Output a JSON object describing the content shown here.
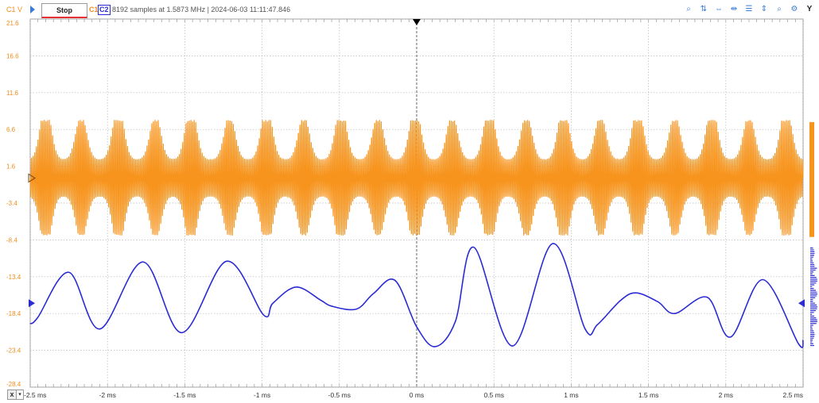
{
  "toolbar": {
    "channel_unit": "C1 V",
    "stop_label": "Stop",
    "c1_label": "C1",
    "c2_label": "C2",
    "acquisition_info": "8192 samples at 1.5873 MHz  |  2024-06-03 11:11:47.846",
    "tools": [
      "zoom-in-icon",
      "auto-scale-icon",
      "fit-horizontal-icon",
      "fit-cursors-icon",
      "stack-icon",
      "split-icon",
      "zoom-out-icon",
      "settings-icon"
    ],
    "tool_glyphs": [
      "⌕",
      "⇅",
      "⇔",
      "⇹",
      "☰",
      "⇕",
      "⌕",
      "⚙"
    ],
    "y_button": "Y"
  },
  "colors": {
    "c1": "#f7941d",
    "c2": "#2b2bd4",
    "grid": "#b8b8b8",
    "c1_axis_text": "#f28c1c"
  },
  "chart_data": {
    "type": "line",
    "title": "",
    "xlabel": "",
    "ylabel": "C1 V",
    "x_unit": "ms",
    "xlim": [
      -2.5,
      2.5
    ],
    "ylim": [
      -28.4,
      21.6
    ],
    "y_ticks": [
      21.6,
      16.6,
      11.6,
      6.6,
      1.6,
      -3.4,
      -8.4,
      -13.4,
      -18.4,
      -23.4,
      -28.4
    ],
    "x_ticks": [
      -2.5,
      -2,
      -1.5,
      -1,
      -0.5,
      0,
      0.5,
      1,
      1.5,
      2,
      2.5
    ],
    "x_tick_labels": [
      "-2.5 ms",
      "-2 ms",
      "-1.5 ms",
      "-1 ms",
      "-0.5 ms",
      "0 ms",
      "0.5 ms",
      "1 ms",
      "1.5 ms",
      "2 ms",
      "2.5 ms"
    ],
    "y_tick_labels": [
      "21.6",
      "16.6",
      "11.6",
      "6.6",
      "1.6",
      "-3.4",
      "-8.4",
      "-13.4",
      "-18.4",
      "-23.4",
      "-28.4"
    ],
    "grid": true,
    "series": [
      {
        "name": "C1",
        "description_type": "burst-modulated carrier",
        "center": 0.0,
        "peak_max": 7.9,
        "peak_min": -7.8,
        "envelope_peaks_ms": [
          -2.4,
          -2.17,
          -1.93,
          -1.69,
          -1.46,
          -1.21,
          -0.97,
          -0.73,
          -0.49,
          -0.25,
          -0.01,
          0.23,
          0.47,
          0.71,
          0.95,
          1.19,
          1.43,
          1.67,
          1.91,
          2.15,
          2.39
        ]
      },
      {
        "name": "C2",
        "points": [
          [
            -2.5,
            -19.8
          ],
          [
            -2.45,
            -18.9
          ],
          [
            -2.25,
            -12.8
          ],
          [
            -2.05,
            -20.5
          ],
          [
            -1.77,
            -11.4
          ],
          [
            -1.52,
            -21.0
          ],
          [
            -1.23,
            -11.3
          ],
          [
            -0.99,
            -18.6
          ],
          [
            -0.93,
            -17.0
          ],
          [
            -0.78,
            -14.8
          ],
          [
            -0.62,
            -16.6
          ],
          [
            -0.55,
            -17.4
          ],
          [
            -0.39,
            -17.8
          ],
          [
            -0.28,
            -15.7
          ],
          [
            -0.14,
            -13.9
          ],
          [
            0.0,
            -20.2
          ],
          [
            0.12,
            -22.9
          ],
          [
            0.25,
            -19.5
          ],
          [
            0.37,
            -9.4
          ],
          [
            0.62,
            -22.8
          ],
          [
            0.88,
            -8.9
          ],
          [
            1.09,
            -20.5
          ],
          [
            1.17,
            -19.9
          ],
          [
            1.32,
            -16.6
          ],
          [
            1.42,
            -15.6
          ],
          [
            1.56,
            -16.8
          ],
          [
            1.67,
            -18.4
          ],
          [
            1.88,
            -16.2
          ],
          [
            2.03,
            -21.6
          ],
          [
            2.24,
            -13.8
          ],
          [
            2.47,
            -22.5
          ],
          [
            2.5,
            -22.0
          ]
        ]
      }
    ]
  }
}
